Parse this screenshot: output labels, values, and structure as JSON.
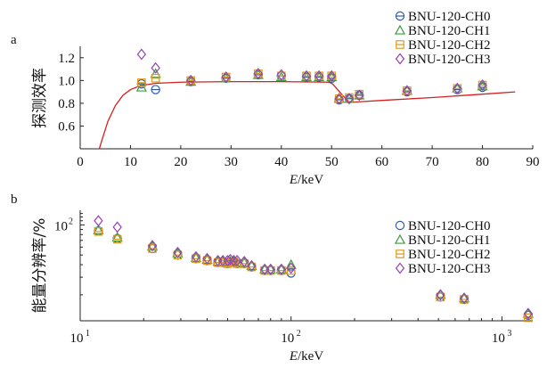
{
  "chart_data": [
    {
      "panel_label": "a",
      "type": "scatter",
      "xlabel_italic": "E",
      "xlabel_unit": "/keV",
      "ylabel": "探测效率",
      "xlim": [
        0,
        90
      ],
      "ylim": [
        0.4,
        1.3
      ],
      "xticks": [
        "0",
        "10",
        "20",
        "30",
        "40",
        "50",
        "60",
        "70",
        "80",
        "90"
      ],
      "yticks": [
        "0.6",
        "0.8",
        "1.0",
        "1.2"
      ],
      "legend_position": "top-right",
      "series": [
        {
          "name": "BNU-120-CH0",
          "marker": "circle-cross",
          "color": "#2e5aa8",
          "points": [
            [
              12.2,
              0.97
            ],
            [
              15,
              0.92
            ],
            [
              22,
              0.99
            ],
            [
              29,
              1.02
            ],
            [
              35.4,
              1.05
            ],
            [
              40,
              1.04
            ],
            [
              45,
              1.03
            ],
            [
              47.5,
              1.03
            ],
            [
              50,
              1.02
            ],
            [
              51.5,
              0.83
            ],
            [
              53.5,
              0.84
            ],
            [
              55.5,
              0.87
            ],
            [
              65,
              0.9
            ],
            [
              75,
              0.92
            ],
            [
              80,
              0.94
            ]
          ]
        },
        {
          "name": "BNU-120-CH1",
          "marker": "triangle",
          "color": "#3c9a3c",
          "points": [
            [
              12.2,
              0.94
            ],
            [
              15,
              1.06
            ],
            [
              22,
              0.99
            ],
            [
              29,
              1.02
            ],
            [
              35.4,
              1.05
            ],
            [
              40,
              1.03
            ],
            [
              45,
              1.03
            ],
            [
              47.5,
              1.03
            ],
            [
              50,
              1.03
            ],
            [
              51.5,
              0.84
            ],
            [
              53.5,
              0.84
            ],
            [
              55.5,
              0.87
            ],
            [
              65,
              0.91
            ],
            [
              75,
              0.93
            ],
            [
              80,
              0.95
            ]
          ]
        },
        {
          "name": "BNU-120-CH2",
          "marker": "square",
          "color": "#e09a1e",
          "points": [
            [
              12.2,
              0.98
            ],
            [
              15,
              1.02
            ],
            [
              22,
              1.0
            ],
            [
              29,
              1.03
            ],
            [
              35.4,
              1.06
            ],
            [
              40,
              1.04
            ],
            [
              45,
              1.04
            ],
            [
              47.5,
              1.04
            ],
            [
              50,
              1.04
            ],
            [
              51.5,
              0.84
            ],
            [
              53.5,
              0.85
            ],
            [
              55.5,
              0.88
            ],
            [
              65,
              0.91
            ],
            [
              75,
              0.93
            ],
            [
              80,
              0.96
            ]
          ]
        },
        {
          "name": "BNU-120-CH3",
          "marker": "diamond",
          "color": "#9a3fb4",
          "points": [
            [
              12.2,
              1.23
            ],
            [
              15,
              1.11
            ],
            [
              22,
              1.0
            ],
            [
              29,
              1.03
            ],
            [
              35.4,
              1.06
            ],
            [
              40,
              1.05
            ],
            [
              45,
              1.04
            ],
            [
              47.5,
              1.04
            ],
            [
              50,
              1.04
            ],
            [
              51.5,
              0.84
            ],
            [
              53.5,
              0.84
            ],
            [
              55.5,
              0.87
            ],
            [
              65,
              0.91
            ],
            [
              75,
              0.93
            ],
            [
              80,
              0.96
            ]
          ]
        }
      ],
      "curve": {
        "color": "#d42020",
        "points": [
          [
            3.8,
            0.38
          ],
          [
            4.5,
            0.5
          ],
          [
            5.5,
            0.64
          ],
          [
            7,
            0.78
          ],
          [
            8.5,
            0.87
          ],
          [
            10,
            0.92
          ],
          [
            12,
            0.955
          ],
          [
            15,
            0.975
          ],
          [
            20,
            0.985
          ],
          [
            30,
            0.99
          ],
          [
            40,
            0.99
          ],
          [
            49.5,
            0.985
          ],
          [
            50.2,
            0.97
          ],
          [
            52,
            0.88
          ],
          [
            53.5,
            0.81
          ],
          [
            55,
            0.812
          ],
          [
            60,
            0.825
          ],
          [
            70,
            0.85
          ],
          [
            80,
            0.88
          ],
          [
            86.5,
            0.9
          ]
        ]
      }
    },
    {
      "panel_label": "b",
      "type": "scatter",
      "xscale": "log",
      "yscale": "log",
      "xlabel_italic": "E",
      "xlabel_unit": "/keV",
      "ylabel": "能量分辨率/%",
      "xlim": [
        10,
        1400
      ],
      "ylim": [
        11,
        140
      ],
      "xticks": [
        {
          "value": 10,
          "mantissa": "10",
          "exp": "1"
        },
        {
          "value": 100,
          "mantissa": "10",
          "exp": "2"
        },
        {
          "value": 1000,
          "mantissa": "10",
          "exp": "3"
        }
      ],
      "yticks": [
        {
          "value": 100,
          "mantissa": "10",
          "exp": "2"
        }
      ],
      "legend_position": "right",
      "series": [
        {
          "name": "BNU-120-CH0",
          "marker": "circle",
          "color": "#2e5aa8",
          "points": [
            [
              12.2,
              87
            ],
            [
              15,
              73
            ],
            [
              22,
              58
            ],
            [
              29,
              50
            ],
            [
              35.4,
              46
            ],
            [
              40,
              44
            ],
            [
              45,
              42
            ],
            [
              47.5,
              42
            ],
            [
              50,
              41
            ],
            [
              51.5,
              42
            ],
            [
              53.5,
              42
            ],
            [
              55.5,
              41
            ],
            [
              60,
              41
            ],
            [
              65,
              38
            ],
            [
              75,
              35
            ],
            [
              80,
              35
            ],
            [
              90,
              35
            ],
            [
              100,
              33
            ],
            [
              511,
              19
            ],
            [
              662,
              18
            ],
            [
              1332,
              12.5
            ]
          ]
        },
        {
          "name": "BNU-120-CH1",
          "marker": "triangle",
          "color": "#3c9a3c",
          "points": [
            [
              12.2,
              89
            ],
            [
              15,
              75
            ],
            [
              22,
              61
            ],
            [
              29,
              52
            ],
            [
              35.4,
              47
            ],
            [
              40,
              45
            ],
            [
              45,
              43
            ],
            [
              47.5,
              43
            ],
            [
              50,
              42
            ],
            [
              51.5,
              43
            ],
            [
              53.5,
              43
            ],
            [
              55.5,
              42
            ],
            [
              60,
              42
            ],
            [
              65,
              39
            ],
            [
              75,
              36
            ],
            [
              80,
              36
            ],
            [
              90,
              36
            ],
            [
              100,
              40
            ],
            [
              511,
              20
            ],
            [
              662,
              18.5
            ],
            [
              1332,
              13
            ]
          ]
        },
        {
          "name": "BNU-120-CH2",
          "marker": "square",
          "color": "#e09a1e",
          "points": [
            [
              12.2,
              86
            ],
            [
              15,
              72
            ],
            [
              22,
              58
            ],
            [
              29,
              50
            ],
            [
              35.4,
              46
            ],
            [
              40,
              44
            ],
            [
              45,
              42
            ],
            [
              47.5,
              42
            ],
            [
              50,
              41
            ],
            [
              51.5,
              42
            ],
            [
              53.5,
              42
            ],
            [
              55.5,
              41
            ],
            [
              60,
              41
            ],
            [
              65,
              38
            ],
            [
              75,
              35
            ],
            [
              80,
              35
            ],
            [
              90,
              35
            ],
            [
              100,
              35
            ],
            [
              511,
              19
            ],
            [
              662,
              18
            ],
            [
              1332,
              11.8
            ]
          ]
        },
        {
          "name": "BNU-120-CH3",
          "marker": "diamond",
          "color": "#9a3fb4",
          "points": [
            [
              12.2,
              110
            ],
            [
              15,
              95
            ],
            [
              22,
              62
            ],
            [
              29,
              53
            ],
            [
              35.4,
              48
            ],
            [
              40,
              46
            ],
            [
              45,
              44
            ],
            [
              47.5,
              44
            ],
            [
              50,
              44
            ],
            [
              51.5,
              45
            ],
            [
              53.5,
              44
            ],
            [
              55.5,
              44
            ],
            [
              60,
              43
            ],
            [
              65,
              39
            ],
            [
              75,
              36
            ],
            [
              80,
              36
            ],
            [
              90,
              36
            ],
            [
              100,
              37
            ],
            [
              511,
              20
            ],
            [
              662,
              18.5
            ],
            [
              1332,
              13
            ]
          ]
        }
      ]
    }
  ]
}
